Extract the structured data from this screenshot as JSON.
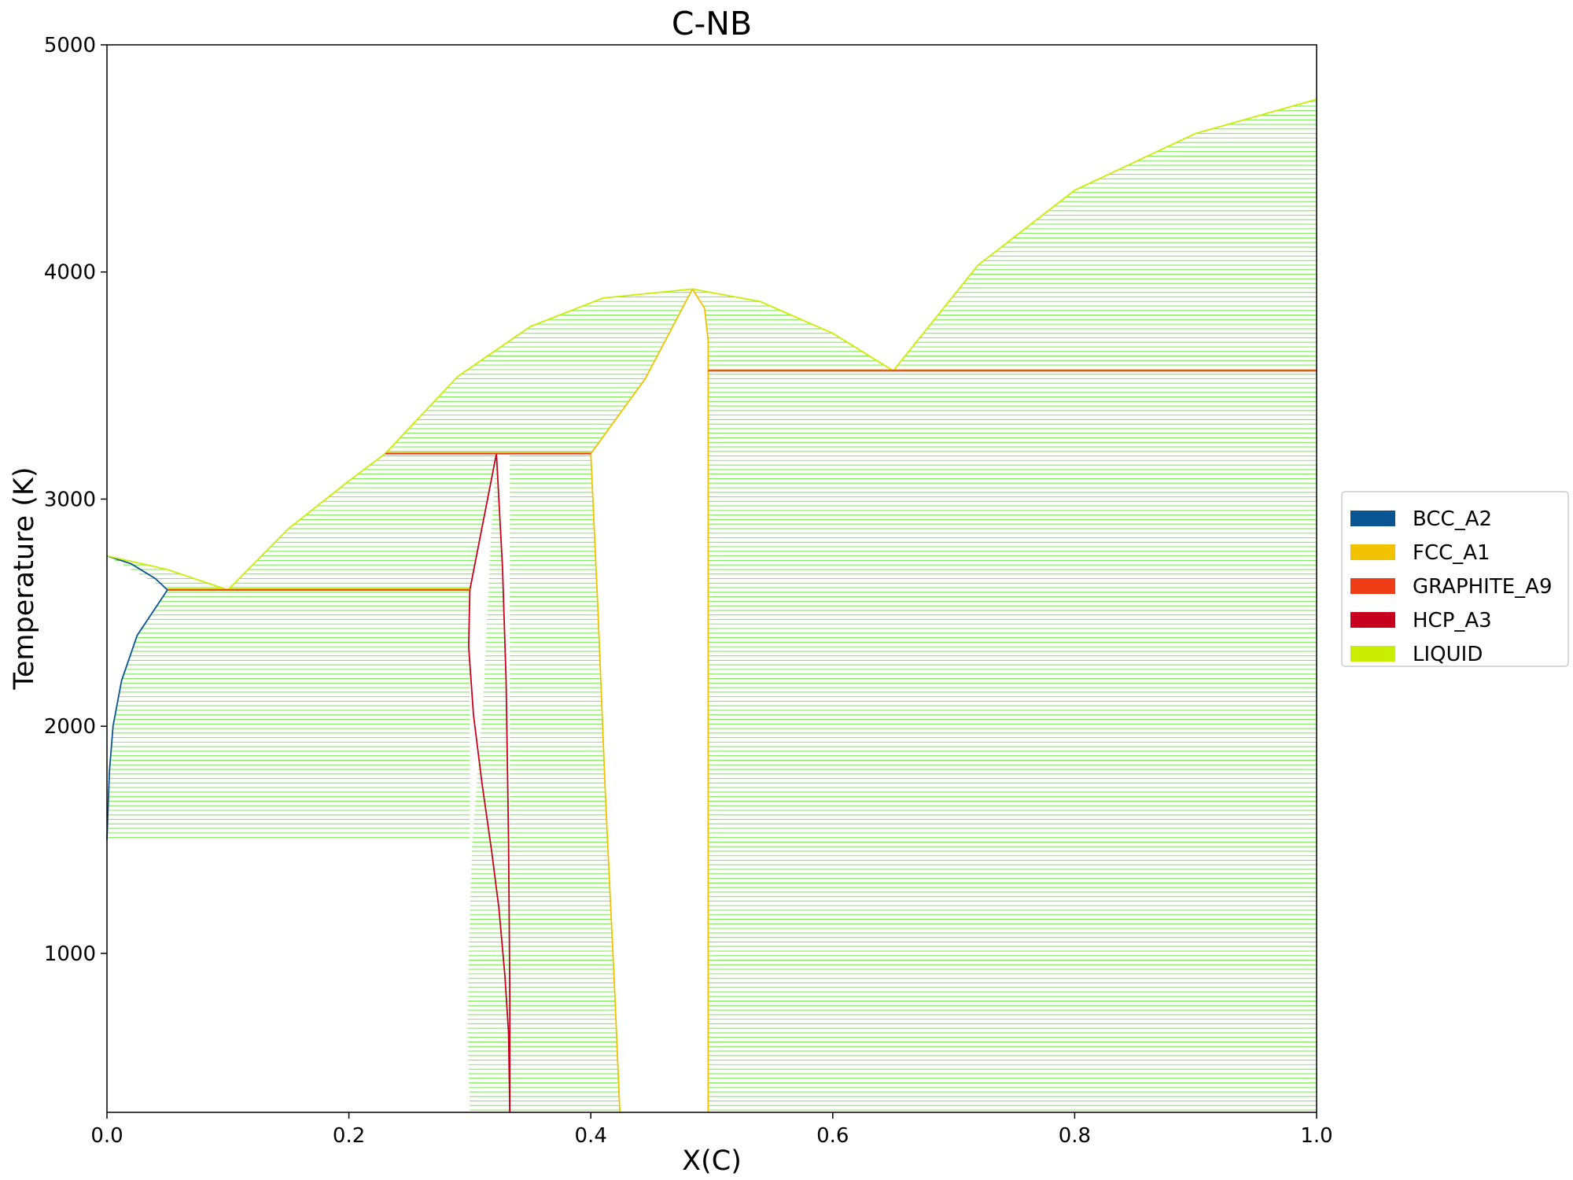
{
  "chart_data": {
    "type": "phase_diagram",
    "title": "C-NB",
    "xlabel": "X(C)",
    "ylabel": "Temperature (K)",
    "xlim": [
      0.0,
      1.0
    ],
    "ylim": [
      300,
      5000
    ],
    "xticks": [
      0.0,
      0.2,
      0.4,
      0.6,
      0.8,
      1.0
    ],
    "xtick_labels": [
      "0.0",
      "0.2",
      "0.4",
      "0.6",
      "0.8",
      "1.0"
    ],
    "yticks": [
      1000,
      2000,
      3000,
      4000,
      5000
    ],
    "ytick_labels": [
      "1000",
      "2000",
      "3000",
      "4000",
      "5000"
    ],
    "grid": false,
    "legend_position": "right, outside plot",
    "legend": [
      {
        "label": "BCC_A2",
        "color": "#0a5591"
      },
      {
        "label": "FCC_A1",
        "color": "#f2c200"
      },
      {
        "label": "GRAPHITE_A9",
        "color": "#ee3d16"
      },
      {
        "label": "HCP_A3",
        "color": "#c8001f"
      },
      {
        "label": "LIQUID",
        "color": "#c9ee00"
      }
    ],
    "tie_line_color": "#7fee5a",
    "two_phase_regions": [
      {
        "name": "liquid+bcc",
        "left": [
          [
            0.0,
            2750
          ],
          [
            0.05,
            2600
          ]
        ],
        "right": [
          [
            0.0,
            2750
          ],
          [
            0.05,
            2690
          ],
          [
            0.1,
            2600
          ]
        ]
      },
      {
        "name": "bcc+hcp",
        "left": [
          [
            0.0,
            1500
          ],
          [
            0.002,
            1800
          ],
          [
            0.005,
            2000
          ],
          [
            0.012,
            2200
          ],
          [
            0.025,
            2400
          ],
          [
            0.05,
            2600
          ]
        ],
        "right": [
          [
            0.3,
            300
          ],
          [
            0.3,
            2600
          ]
        ]
      },
      {
        "name": "liquid+hcp",
        "left": [
          [
            0.1,
            2600
          ],
          [
            0.15,
            2870
          ],
          [
            0.2,
            3080
          ],
          [
            0.23,
            3200
          ]
        ],
        "right": [
          [
            0.3,
            2600
          ],
          [
            0.322,
            3200
          ]
        ]
      },
      {
        "name": "hcp+fcc",
        "left": [
          [
            0.322,
            3200
          ],
          [
            0.317,
            2800
          ],
          [
            0.311,
            2100
          ],
          [
            0.302,
            1500
          ],
          [
            0.299,
            1000
          ],
          [
            0.298,
            650
          ],
          [
            0.3,
            300
          ]
        ],
        "right": [
          [
            0.322,
            3200
          ],
          [
            0.327,
            2700
          ],
          [
            0.33,
            2200
          ],
          [
            0.332,
            1500
          ],
          [
            0.333,
            800
          ],
          [
            0.333,
            300
          ]
        ]
      },
      {
        "name": "liquid+fcc",
        "left": [
          [
            0.23,
            3200
          ],
          [
            0.29,
            3540
          ],
          [
            0.35,
            3760
          ],
          [
            0.41,
            3885
          ],
          [
            0.484,
            3925
          ]
        ],
        "right": [
          [
            0.4,
            3200
          ],
          [
            0.445,
            3530
          ],
          [
            0.484,
            3925
          ]
        ]
      },
      {
        "name": "fcc+fcc",
        "left": [
          [
            0.333,
            300
          ],
          [
            0.333,
            3200
          ]
        ],
        "right": [
          [
            0.4,
            3200
          ],
          [
            0.406,
            2500
          ],
          [
            0.412,
            1700
          ],
          [
            0.42,
            800
          ],
          [
            0.424,
            300
          ]
        ]
      },
      {
        "name": "liquid+fcc_high",
        "left": [
          [
            0.484,
            3925
          ],
          [
            0.54,
            3870
          ],
          [
            0.6,
            3730
          ],
          [
            0.65,
            3565
          ]
        ],
        "right": [
          [
            0.484,
            3925
          ],
          [
            0.494,
            3840
          ],
          [
            0.497,
            3700
          ],
          [
            0.497,
            3565
          ]
        ]
      },
      {
        "name": "fcc+graphite",
        "left": [
          [
            0.497,
            300
          ],
          [
            0.497,
            3565
          ]
        ],
        "right": [
          [
            1.0,
            300
          ],
          [
            1.0,
            3565
          ]
        ]
      },
      {
        "name": "liquid+graphite",
        "left": [
          [
            0.65,
            3565
          ],
          [
            0.72,
            4030
          ],
          [
            0.8,
            4360
          ],
          [
            0.9,
            4610
          ],
          [
            1.0,
            4760
          ]
        ],
        "right": [
          [
            1.0,
            3565
          ],
          [
            1.0,
            4760
          ]
        ]
      }
    ],
    "boundaries": [
      {
        "phase": "BCC_A2",
        "points": [
          [
            0.0,
            2750
          ],
          [
            0.02,
            2715
          ],
          [
            0.04,
            2650
          ],
          [
            0.05,
            2600
          ]
        ]
      },
      {
        "phase": "BCC_A2",
        "points": [
          [
            0.0,
            1500
          ],
          [
            0.002,
            1800
          ],
          [
            0.005,
            2000
          ],
          [
            0.012,
            2200
          ],
          [
            0.025,
            2400
          ],
          [
            0.05,
            2600
          ]
        ]
      },
      {
        "phase": "LIQUID",
        "points": [
          [
            0.0,
            2750
          ],
          [
            0.05,
            2690
          ],
          [
            0.1,
            2600
          ]
        ]
      },
      {
        "phase": "LIQUID",
        "points": [
          [
            0.1,
            2600
          ],
          [
            0.15,
            2870
          ],
          [
            0.2,
            3080
          ],
          [
            0.23,
            3200
          ],
          [
            0.29,
            3540
          ],
          [
            0.35,
            3760
          ],
          [
            0.41,
            3885
          ],
          [
            0.484,
            3925
          ]
        ]
      },
      {
        "phase": "LIQUID",
        "points": [
          [
            0.484,
            3925
          ],
          [
            0.54,
            3870
          ],
          [
            0.6,
            3730
          ],
          [
            0.65,
            3565
          ]
        ]
      },
      {
        "phase": "LIQUID",
        "points": [
          [
            0.65,
            3565
          ],
          [
            0.72,
            4030
          ],
          [
            0.8,
            4360
          ],
          [
            0.9,
            4610
          ],
          [
            1.0,
            4760
          ]
        ]
      },
      {
        "phase": "FCC_A1",
        "points": [
          [
            0.4,
            3200
          ],
          [
            0.445,
            3530
          ],
          [
            0.484,
            3925
          ]
        ]
      },
      {
        "phase": "FCC_A1",
        "points": [
          [
            0.484,
            3925
          ],
          [
            0.494,
            3840
          ],
          [
            0.497,
            3700
          ],
          [
            0.497,
            3565
          ],
          [
            0.497,
            300
          ]
        ]
      },
      {
        "phase": "FCC_A1",
        "points": [
          [
            0.4,
            3200
          ],
          [
            0.406,
            2500
          ],
          [
            0.412,
            1700
          ],
          [
            0.42,
            800
          ],
          [
            0.424,
            300
          ]
        ]
      },
      {
        "phase": "HCP_A3",
        "points": [
          [
            0.3,
            2600
          ],
          [
            0.322,
            3200
          ]
        ]
      },
      {
        "phase": "HCP_A3",
        "points": [
          [
            0.3,
            2600
          ],
          [
            0.299,
            2350
          ],
          [
            0.303,
            2050
          ],
          [
            0.31,
            1750
          ],
          [
            0.318,
            1450
          ],
          [
            0.324,
            1200
          ],
          [
            0.329,
            900
          ],
          [
            0.332,
            650
          ],
          [
            0.333,
            300
          ]
        ]
      },
      {
        "phase": "HCP_A3",
        "points": [
          [
            0.322,
            3200
          ],
          [
            0.327,
            2700
          ],
          [
            0.33,
            2200
          ],
          [
            0.332,
            1500
          ],
          [
            0.333,
            800
          ],
          [
            0.333,
            300
          ]
        ]
      }
    ],
    "invariants": [
      {
        "T": 2600,
        "x": [
          0.05,
          0.3
        ]
      },
      {
        "T": 3200,
        "x": [
          0.23,
          0.4
        ]
      },
      {
        "T": 3565,
        "x": [
          0.497,
          1.0
        ]
      }
    ]
  }
}
